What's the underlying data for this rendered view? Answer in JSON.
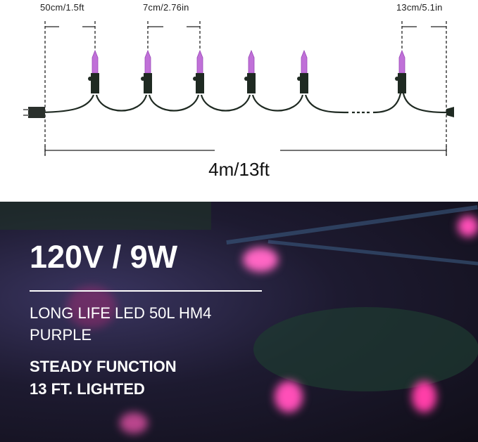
{
  "diagram": {
    "spacing_lead": "50cm/1.5ft",
    "spacing_bulb": "7cm/2.76in",
    "spacing_tail": "13cm/5.1in",
    "total_length": "4m/13ft",
    "bulb_color": "#c070d8",
    "cable_color": "#1f2a22"
  },
  "photo": {
    "headline": "120V / 9W",
    "line1": "LONG LIFE LED 50L HM4",
    "line2": "PURPLE",
    "line3": "STEADY FUNCTION",
    "line4": "13  FT. LIGHTED",
    "light_color": "#ff4fb8"
  }
}
